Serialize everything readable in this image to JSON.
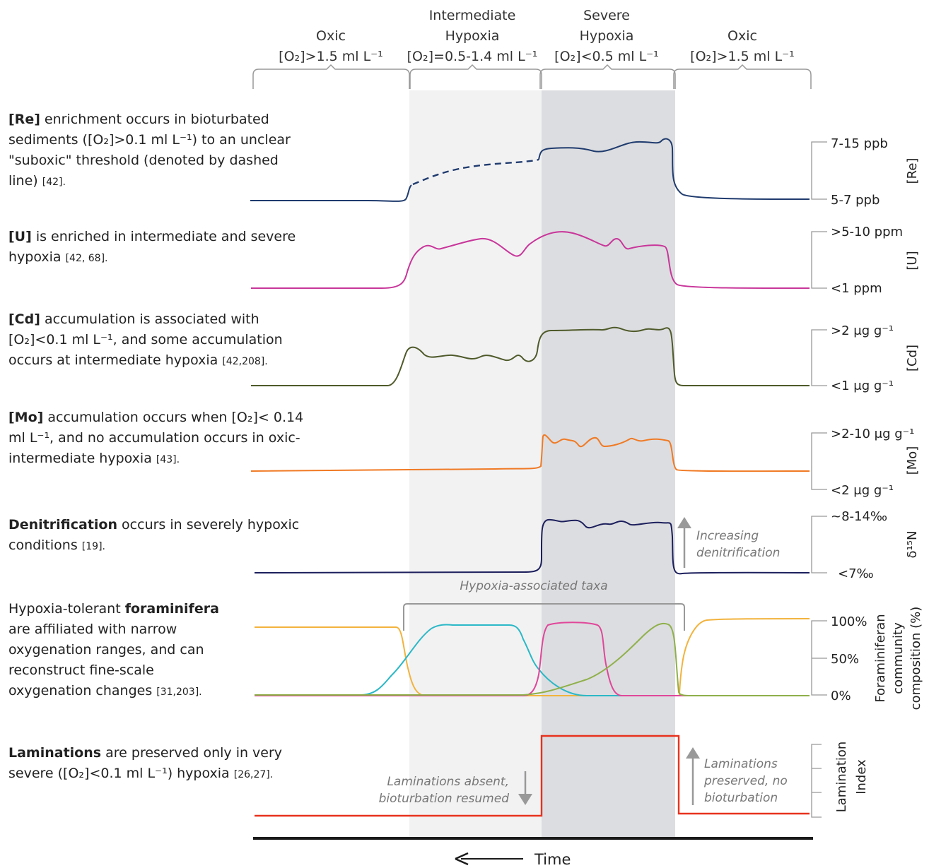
{
  "zones": [
    {
      "line1": "",
      "line2": "Oxic",
      "cond": "[O₂]>1.5 ml L⁻¹"
    },
    {
      "line1": "Intermediate",
      "line2": "Hypoxia",
      "cond": "[O₂]=0.5-1.4 ml L⁻¹"
    },
    {
      "line1": "Severe",
      "line2": "Hypoxia",
      "cond": "[O₂]<0.5 ml L⁻¹"
    },
    {
      "line1": "",
      "line2": "Oxic",
      "cond": "[O₂]>1.5 ml L⁻¹"
    }
  ],
  "rows": {
    "re": {
      "bold": "[Re]",
      "text1": " enrichment occurs in bioturbated",
      "text2": "sediments ([O₂]>0.1 ml L⁻¹) to an unclear",
      "text3": "\"suboxic\" threshold (denoted by dashed",
      "text4": "line) ",
      "ref": "[42].",
      "tick_high": "7-15 ppb",
      "tick_low": "5-7 ppb",
      "axis": "[Re]"
    },
    "u": {
      "bold": "[U]",
      "text1": " is enriched in intermediate and severe",
      "text2": "hypoxia ",
      "ref": "[42, 68].",
      "tick_high": ">5-10 ppm",
      "tick_low": "<1 ppm",
      "axis": "[U]"
    },
    "cd": {
      "bold": "[Cd]",
      "text1": " accumulation is associated with",
      "text2": "[O₂]<0.1 ml L⁻¹, and some accumulation",
      "text3": "occurs at intermediate hypoxia ",
      "ref": "[42,208].",
      "tick_high": ">2 μg g⁻¹",
      "tick_low": "<1 μg g⁻¹",
      "axis": "[Cd]"
    },
    "mo": {
      "bold": "[Mo]",
      "text1": " accumulation occurs when [O₂]< 0.14",
      "text2": "ml L⁻¹, and no accumulation occurs in oxic-",
      "text3": "intermediate hypoxia ",
      "ref": "[43].",
      "tick_high": ">2-10 μg g⁻¹",
      "tick_low": "<2 μg g⁻¹",
      "axis": "[Mo]"
    },
    "dn": {
      "bold": "Denitrification",
      "text1": " occurs in severely hypoxic",
      "text2": "conditions ",
      "ref": "[19].",
      "tick_high": "~8-14‰",
      "tick_low": "<7‰",
      "axis": "δ¹⁵N",
      "note1": "Increasing",
      "note2": "denitrification"
    },
    "foram": {
      "pre": "Hypoxia-tolerant ",
      "bold": "foraminifera",
      "text2": "are affiliated with narrow",
      "text3": "oxygenation ranges, and can",
      "text4": "reconstruct fine-scale",
      "text5": "oxygenation changes ",
      "ref": "[31,203].",
      "tick_100": "100%",
      "tick_50": "50%",
      "tick_0": "0%",
      "axis1": "Foraminiferan",
      "axis2": "community",
      "axis3": "composition (%)",
      "bracket_label": "Hypoxia-associated taxa"
    },
    "lam": {
      "bold": "Laminations",
      "text1": " are preserved only in very",
      "text2": "severe ([O₂]<0.1 ml L⁻¹) hypoxia ",
      "ref": "[26,27].",
      "axis1": "Lamination",
      "axis2": "Index",
      "note_left1": "Laminations absent,",
      "note_left2": "bioturbation resumed",
      "note_right1": "Laminations",
      "note_right2": "preserved, no",
      "note_right3": "bioturbation"
    }
  },
  "time_label": "Time",
  "colors": {
    "re": "#1f3b6e",
    "u": "#c8369a",
    "cd": "#4f5a2a",
    "mo": "#f07a24",
    "dn": "#1c1f5c",
    "lam": "#e8321e",
    "foram_oxic": "#f2b33d",
    "foram_inter": "#2bb8c6",
    "foram_severe": "#e0479a",
    "foram_late": "#8fb04a",
    "band_inter": "#f2f2f3",
    "band_severe": "#dcdde0"
  }
}
